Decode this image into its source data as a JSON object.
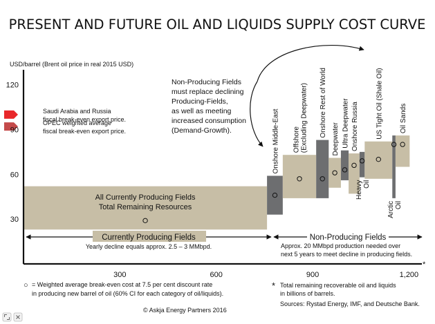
{
  "chart_data": {
    "type": "bar",
    "variant": "supply-cost-curve (variable-width bars spanning cost ranges, circles = weighted average)",
    "title": "PRESENT AND FUTURE OIL AND LIQUIDS SUPPLY COST CURVE",
    "ylabel": "USD/barrel  (Brent oil price in real 2015 USD)",
    "xlabel": "*",
    "x_ticks": [
      "300",
      "600",
      "900",
      "1,200"
    ],
    "x_tick_values": [
      300,
      600,
      900,
      1200
    ],
    "y_ticks": [
      "30",
      "60",
      "90",
      "120"
    ],
    "y_tick_values": [
      30,
      60,
      90,
      120
    ],
    "xlim": [
      0,
      1240
    ],
    "ylim": [
      0,
      130
    ],
    "grid": false,
    "markers": [
      {
        "label_lines": [
          "Saudi Arabia and Russia",
          "fiscal break-even export price."
        ],
        "y": 100,
        "color": "#e8272a"
      },
      {
        "label_lines": [
          "OPEC weighted average",
          "fiscal break-even export price."
        ],
        "y": 92,
        "color": "#c44a4a"
      }
    ],
    "series": [
      {
        "category": "All Currently Producing Fields",
        "x0": 0,
        "x1": 758,
        "low": 23,
        "high": 52,
        "avg": 29,
        "color": "#c7bea6",
        "label_lines": [
          "All Currently Producing Fields",
          "Total Remaining Resources"
        ]
      },
      {
        "category": "Onshore Middle-East",
        "x0": 758,
        "x1": 807,
        "low": 33,
        "high": 59,
        "avg": 46,
        "color": "#6d6e70",
        "label_lines": [
          "Onshore Middle-East"
        ]
      },
      {
        "category": "Offshore (Excluding Deepwater)",
        "x0": 807,
        "x1": 911,
        "low": 44,
        "high": 73,
        "avg": 57,
        "color": "#c7bea6",
        "label_lines": [
          "Offshore",
          "(Excluding Deepwater)"
        ]
      },
      {
        "category": "Onshore Rest of World",
        "x0": 911,
        "x1": 950,
        "low": 44,
        "high": 83,
        "avg": 57,
        "color": "#6d6e70",
        "label_lines": [
          "Onshore Rest of World"
        ]
      },
      {
        "category": "Deepwater",
        "x0": 950,
        "x1": 988,
        "low": 51,
        "high": 71,
        "avg": 61,
        "color": "#c7bea6",
        "label_lines": [
          "Deepwater"
        ]
      },
      {
        "category": "Ultra Deepwater",
        "x0": 988,
        "x1": 1012,
        "low": 56,
        "high": 76,
        "avg": 63,
        "color": "#6d6e70",
        "label_lines": [
          "Ultra Deepwater"
        ]
      },
      {
        "category": "Onshore Russia",
        "x0": 1012,
        "x1": 1046,
        "low": 47,
        "high": 74,
        "avg": 66,
        "color": "#c7bea6",
        "label_lines": [
          "Onshore Russia"
        ]
      },
      {
        "category": "Heavy Oil",
        "x0": 1046,
        "x1": 1062,
        "low": 58,
        "high": 75,
        "avg": 69,
        "color": "#6d6e70",
        "label_lines": [
          "Heavy",
          "Oil"
        ]
      },
      {
        "category": "US Tight Oil (Shale Oil)",
        "x0": 1062,
        "x1": 1148,
        "low": 57,
        "high": 82,
        "avg": 70,
        "color": "#c7bea6",
        "label_lines": [
          "US Tight Oil (Shale Oil)"
        ]
      },
      {
        "category": "Arctic Oil",
        "x0": 1148,
        "x1": 1158,
        "low": 44,
        "high": 86,
        "avg": 80,
        "color": "#6d6e70",
        "label_lines": [
          "Arctic",
          "Oil"
        ]
      },
      {
        "category": "Oil Sands",
        "x0": 1158,
        "x1": 1202,
        "low": 65,
        "high": 86,
        "avg": 80,
        "color": "#c7bea6",
        "label_lines": [
          "Oil Sands"
        ]
      }
    ],
    "annotations": {
      "non_producing_note": [
        "Non-Producing Fields",
        "must replace declining",
        "Producing-Fields,",
        "as well as meeting",
        "increased consumption",
        "(Demand-Growth)."
      ],
      "currently_producing_label": "Currently Producing Fields",
      "currently_producing_sub": "Yearly decline equals approx. 2.5 – 3 MMbpd.",
      "non_producing_label": "Non-Producing Fields",
      "non_producing_sub": [
        "Approx. 20 MMbpd production needed over",
        "next 5 years to meet decline in producing fields."
      ]
    },
    "footnotes": {
      "circle_symbol": "○",
      "circle_note": [
        "= Weighted average break-even cost at 7.5 per cent discount rate",
        "in producing new barrel of oil (60% CI for each category of oil/liquids)."
      ],
      "star_symbol": "*",
      "star_note": [
        "Total remaining recoverable oil and liquids",
        "in billions of barrels."
      ],
      "sources": "Sources: Rystad Energy, IMF,  and Deutsche Bank.",
      "copyright": "© Askja Energy Partners 2016"
    }
  },
  "corner_icons": [
    "fullscreen-icon",
    "close-icon"
  ]
}
